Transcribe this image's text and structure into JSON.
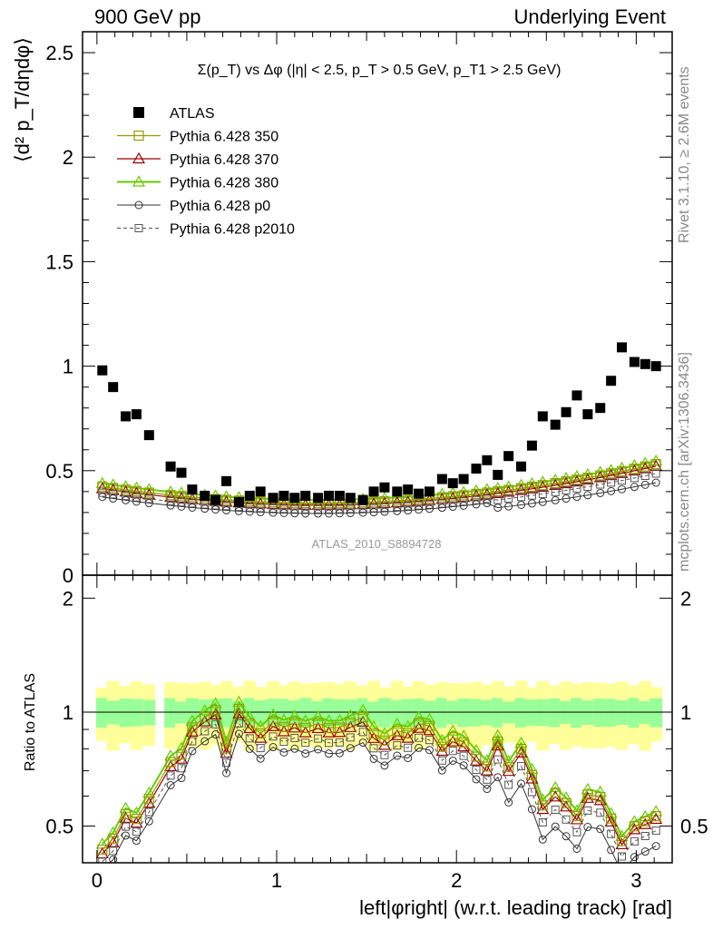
{
  "header": {
    "left": "900 GeV pp",
    "right": "Underlying Event"
  },
  "side_labels": {
    "rivet": "Rivet 3.1.10, ≥ 2.6M events",
    "mcplots": "mcplots.cern.ch [arXiv:1306.3436]"
  },
  "colors": {
    "atlas": "#000000",
    "p350": "#999900",
    "p370": "#990000",
    "p380": "#66cc00",
    "p0": "#333333",
    "p2010": "#555555",
    "band_inner": "#99ff99",
    "band_outer": "#ffff99"
  },
  "chart_data": [
    {
      "type": "scatter",
      "title": "Σ(p_T) vs Δφ (|η| < 2.5, p_T > 0.5 GeV, p_T1 > 2.5 GeV)",
      "ylabel": "⟨d² p_T/dηdφ⟩",
      "xlabel": "",
      "watermark": "ATLAS_2010_S8894728",
      "xlim": [
        -0.08,
        3.2
      ],
      "ylim": [
        0,
        2.6
      ],
      "y_ticks": [
        "0.5",
        "1",
        "1.5",
        "2",
        "2.5"
      ],
      "legend_position": "top-left",
      "series": [
        {
          "name": "ATLAS",
          "marker": "filled-square",
          "x": [
            0.03,
            0.09,
            0.16,
            0.22,
            0.29,
            0.41,
            0.47,
            0.53,
            0.6,
            0.66,
            0.72,
            0.79,
            0.85,
            0.91,
            0.98,
            1.04,
            1.1,
            1.16,
            1.23,
            1.29,
            1.35,
            1.41,
            1.48,
            1.54,
            1.6,
            1.67,
            1.73,
            1.79,
            1.85,
            1.92,
            1.98,
            2.04,
            2.11,
            2.17,
            2.23,
            2.29,
            2.36,
            2.42,
            2.48,
            2.55,
            2.61,
            2.67,
            2.73,
            2.8,
            2.86,
            2.92,
            2.99,
            3.05,
            3.11
          ],
          "y": [
            0.98,
            0.9,
            0.76,
            0.77,
            0.67,
            0.52,
            0.49,
            0.41,
            0.38,
            0.36,
            0.45,
            0.35,
            0.38,
            0.4,
            0.37,
            0.38,
            0.37,
            0.38,
            0.37,
            0.38,
            0.38,
            0.37,
            0.36,
            0.4,
            0.42,
            0.4,
            0.41,
            0.39,
            0.4,
            0.46,
            0.44,
            0.46,
            0.51,
            0.55,
            0.48,
            0.57,
            0.52,
            0.62,
            0.76,
            0.72,
            0.78,
            0.86,
            0.77,
            0.8,
            0.93,
            1.09,
            1.02,
            1.01,
            1.0
          ]
        },
        {
          "name": "Pythia 6.428 350",
          "marker": "open-square",
          "line": "solid"
        },
        {
          "name": "Pythia 6.428 370",
          "marker": "open-triangle",
          "line": "solid"
        },
        {
          "name": "Pythia 6.428 380",
          "marker": "open-triangle",
          "line": "solid"
        },
        {
          "name": "Pythia 6.428 p0",
          "marker": "open-circle",
          "line": "solid"
        },
        {
          "name": "Pythia 6.428 p2010",
          "marker": "open-square",
          "line": "dashed"
        }
      ]
    },
    {
      "type": "line",
      "ylabel": "Ratio to ATLAS",
      "xlabel": "left|φright| (w.r.t. leading track) [rad]",
      "xlim": [
        -0.08,
        3.2
      ],
      "ylim": [
        0.4,
        2.3
      ],
      "x_ticks": [
        "0",
        "1",
        "2",
        "3"
      ],
      "y_ticks": [
        "0.5",
        "1",
        "2"
      ],
      "reference_line": 1,
      "series": [
        {
          "name": "Pythia 6.428 380"
        },
        {
          "name": "Pythia 6.428 370"
        },
        {
          "name": "Pythia 6.428 350"
        },
        {
          "name": "Pythia 6.428 p2010"
        },
        {
          "name": "Pythia 6.428 p0"
        }
      ]
    }
  ]
}
